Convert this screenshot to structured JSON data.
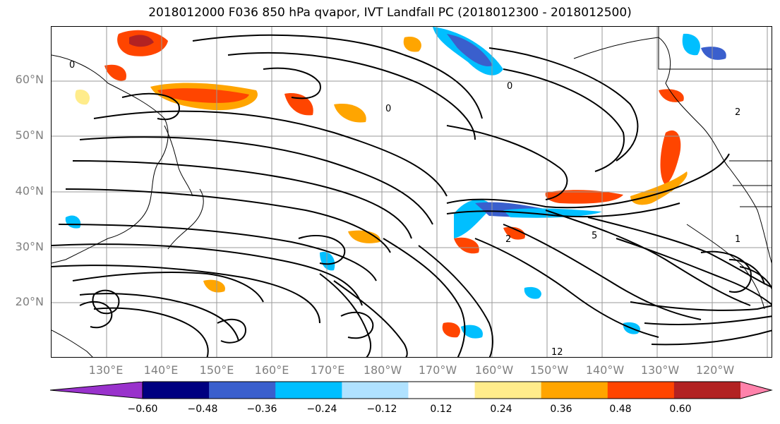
{
  "title": "2018012000 F036 850 hPa qvapor, IVT Landfall PC (2018012300 - 2018012500)",
  "map": {
    "region": "North Pacific",
    "lat_labels": [
      "60°N",
      "50°N",
      "40°N",
      "30°N",
      "20°N"
    ],
    "lon_labels": [
      "130°E",
      "140°E",
      "150°E",
      "160°E",
      "170°E",
      "180°W",
      "170°W",
      "160°W",
      "150°W",
      "140°W",
      "130°W",
      "120°W"
    ],
    "contour_labels": [
      "0",
      "0",
      "0",
      "1",
      "2",
      "2",
      "5",
      "12"
    ]
  },
  "colorbar": {
    "colors": [
      "#9932cc",
      "#000080",
      "#3a5fcd",
      "#00bfff",
      "#b0e2ff",
      "#ffffff",
      "#ffec8b",
      "#ffa500",
      "#ff4500",
      "#b22222",
      "#ff82ab"
    ],
    "ticks": [
      "−0.60",
      "−0.48",
      "−0.36",
      "−0.24",
      "−0.12",
      "0.12",
      "0.24",
      "0.36",
      "0.48",
      "0.60"
    ]
  }
}
